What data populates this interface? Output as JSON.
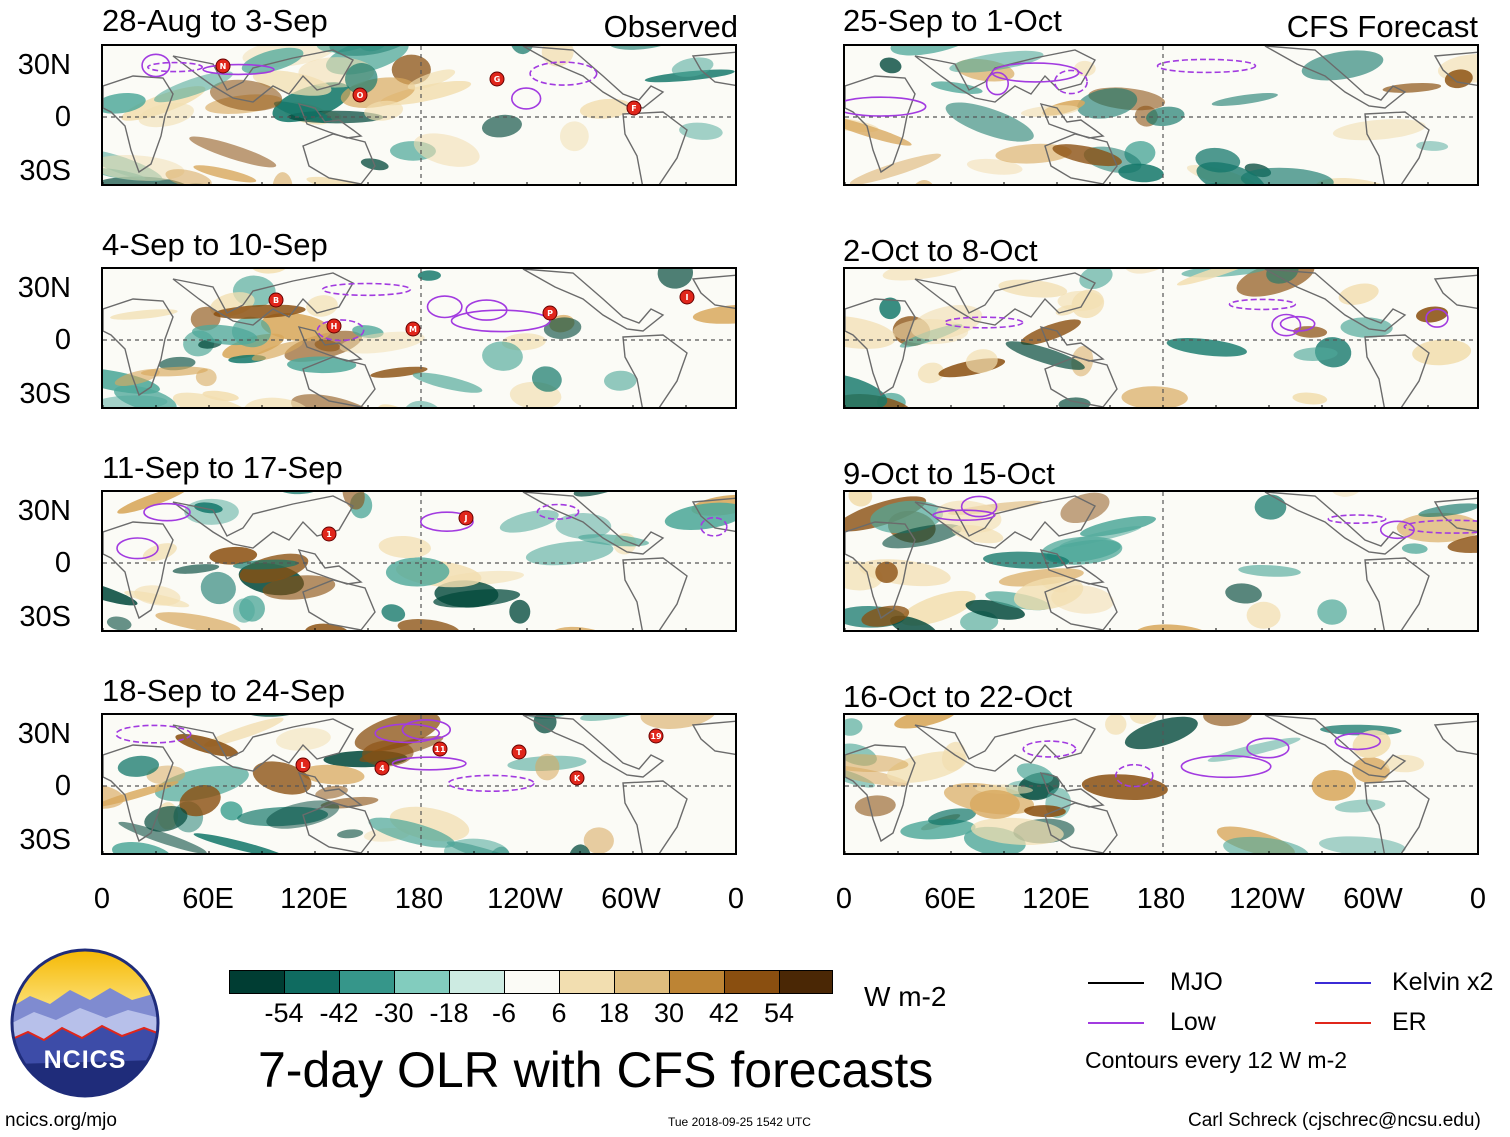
{
  "colors": {
    "neg_dark": "#00473a",
    "neg_mid": "#13776a",
    "neg_light": "#4fa89a",
    "pos_light": "#f2deb0",
    "pos_mid": "#d8a85d",
    "pos_dark": "#8a4f10",
    "land": "#6b6b6b",
    "mjo": "#000000",
    "low": "#a23be0",
    "kelvin": "#3b2bd6",
    "er": "#e0261b"
  },
  "panels": {
    "observed": [
      {
        "title": "28-Aug to 3-Sep",
        "tag": "Observed"
      },
      {
        "title": "4-Sep to 10-Sep",
        "tag": ""
      },
      {
        "title": "11-Sep to 17-Sep",
        "tag": ""
      },
      {
        "title": "18-Sep to 24-Sep",
        "tag": ""
      }
    ],
    "forecast": [
      {
        "title": "25-Sep to 1-Oct",
        "tag": "CFS Forecast"
      },
      {
        "title": "2-Oct to 8-Oct",
        "tag": ""
      },
      {
        "title": "9-Oct to 15-Oct",
        "tag": ""
      },
      {
        "title": "16-Oct to 22-Oct",
        "tag": ""
      }
    ]
  },
  "lat_labels": [
    "30N",
    "0",
    "30S"
  ],
  "lon_labels": [
    "0",
    "60E",
    "120E",
    "180",
    "120W",
    "60W",
    "0"
  ],
  "storms": [
    [
      "N",
      "O",
      "G",
      "F"
    ],
    [
      "B",
      "M",
      "P",
      "I",
      "H"
    ],
    [
      "1",
      "J"
    ],
    [
      "4",
      "T",
      "19",
      "L",
      "11",
      "K"
    ]
  ],
  "colorbar": {
    "labels": [
      "-54",
      "-42",
      "-30",
      "-18",
      "-6",
      "6",
      "18",
      "30",
      "42",
      "54"
    ],
    "colors": [
      "#003d33",
      "#0f6b60",
      "#36968a",
      "#82ccbe",
      "#cdebe2",
      "#fbfbf6",
      "#f2deb0",
      "#dfbd7e",
      "#bd8434",
      "#8a4f10",
      "#4a2705"
    ],
    "units": "W m-2"
  },
  "title": "7-day OLR with CFS forecasts",
  "logo": {
    "text": "NCICS"
  },
  "legend": {
    "mjo": "MJO",
    "low": "Low",
    "kelvin": "Kelvin x2",
    "er": "ER",
    "contours": "Contours every 12 W m-2"
  },
  "footer": {
    "url": "ncics.org/mjo",
    "timestamp": "Tue 2018-09-25 1542 UTC",
    "author": "Carl Schreck (cjschrec@ncsu.edu)"
  }
}
